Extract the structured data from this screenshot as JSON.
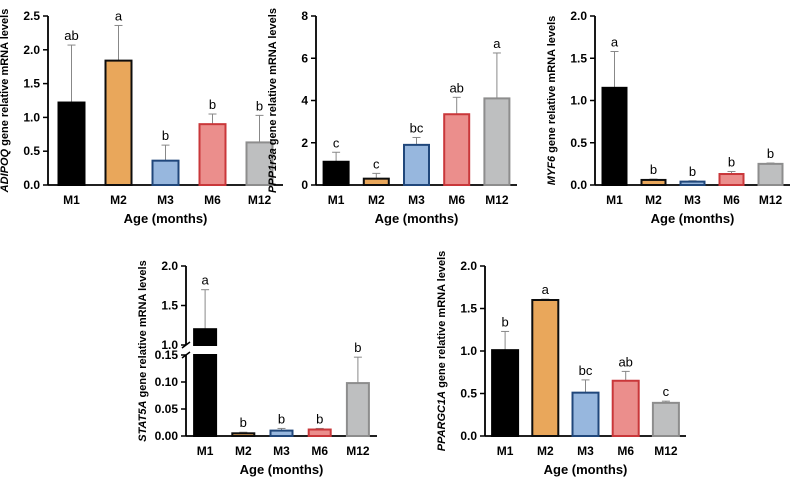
{
  "colors": {
    "M1": "#000000",
    "M2": "#e9a75b",
    "M3": "#97b7de",
    "M6": "#eb8e8c",
    "M12": "#bebfc0",
    "M1_edge": "#000000",
    "M2_edge": "#0d0d0d",
    "M3_edge": "#20477b",
    "M6_edge": "#c9373a",
    "M12_edge": "#8d8d8d"
  },
  "chart_data": [
    {
      "type": "bar",
      "gene": "ADIPOQ",
      "ylabel_suffix": " gene relative mRNA levels",
      "xlabel": "Age  (months)",
      "categories": [
        "M1",
        "M2",
        "M3",
        "M6",
        "M12"
      ],
      "values": [
        1.22,
        1.84,
        0.36,
        0.9,
        0.63
      ],
      "errors": [
        0.85,
        0.52,
        0.23,
        0.15,
        0.4
      ],
      "letters": [
        "ab",
        "a",
        "b",
        "b",
        "b"
      ],
      "ylim": [
        0,
        2.5
      ],
      "yticks": [
        "0.0",
        "0.5",
        "1.0",
        "1.5",
        "2.0",
        "2.5"
      ]
    },
    {
      "type": "bar",
      "gene": "PPP1r3a",
      "ylabel_suffix": " gene relative mRNA levels",
      "xlabel": "Age  (months)",
      "categories": [
        "M1",
        "M2",
        "M3",
        "M6",
        "M12"
      ],
      "values": [
        1.1,
        0.3,
        1.9,
        3.35,
        4.1
      ],
      "errors": [
        0.45,
        0.25,
        0.35,
        0.8,
        2.15
      ],
      "letters": [
        "c",
        "c",
        "bc",
        "ab",
        "a"
      ],
      "ylim": [
        0,
        8
      ],
      "yticks": [
        "0",
        "2",
        "4",
        "6",
        "8"
      ]
    },
    {
      "type": "bar",
      "gene": "MYF6",
      "ylabel_suffix": " gene relative mRNA levels",
      "xlabel": "Age  (months)",
      "categories": [
        "M1",
        "M2",
        "M3",
        "M6",
        "M12"
      ],
      "values": [
        1.15,
        0.06,
        0.04,
        0.13,
        0.25
      ],
      "errors": [
        0.43,
        0.01,
        0.01,
        0.03,
        0.01
      ],
      "letters": [
        "a",
        "b",
        "b",
        "b",
        "b"
      ],
      "ylim": [
        0,
        2.0
      ],
      "yticks": [
        "0.0",
        "0.5",
        "1.0",
        "1.5",
        "2.0"
      ]
    },
    {
      "type": "bar",
      "gene": "STAT5A",
      "ylabel_suffix": " gene relative mRNA levels",
      "xlabel": "Age  (months)",
      "categories": [
        "M1",
        "M2",
        "M3",
        "M6",
        "M12"
      ],
      "values": [
        1.2,
        0.005,
        0.01,
        0.012,
        0.098
      ],
      "errors": [
        0.5,
        0.002,
        0.004,
        0.002,
        0.048
      ],
      "letters": [
        "a",
        "b",
        "b",
        "b",
        "b"
      ],
      "broken_axis": true,
      "lower_range": [
        0,
        0.15
      ],
      "upper_range": [
        1.0,
        2.0
      ],
      "yticks_lower": [
        "0.00",
        "0.05",
        "0.10",
        "0.15"
      ],
      "yticks_upper": [
        "1.0",
        "1.5",
        "2.0"
      ]
    },
    {
      "type": "bar",
      "gene": "PPARGC1A",
      "ylabel_suffix": " gene relative mRNA levels",
      "xlabel": "Age  (months)",
      "categories": [
        "M1",
        "M2",
        "M3",
        "M6",
        "M12"
      ],
      "values": [
        1.01,
        1.6,
        0.51,
        0.65,
        0.39
      ],
      "errors": [
        0.22,
        0.01,
        0.15,
        0.11,
        0.02
      ],
      "letters": [
        "b",
        "a",
        "bc",
        "ab",
        "c"
      ],
      "ylim": [
        0,
        2.0
      ],
      "yticks": [
        "0.0",
        "0.5",
        "1.0",
        "1.5",
        "2.0"
      ]
    }
  ]
}
